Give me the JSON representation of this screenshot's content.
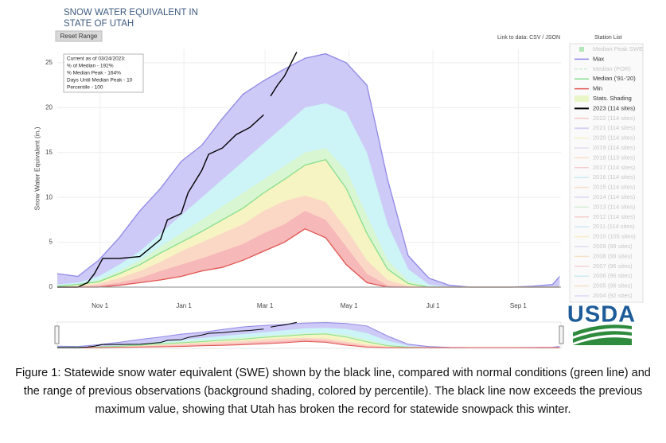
{
  "chart_data": {
    "type": "band-line",
    "title_lines": [
      "SNOW WATER EQUIVALENT IN",
      "STATE OF UTAH"
    ],
    "reset_button": "Reset Range",
    "data_link": "Link to data: CSV / JSON",
    "station_list": "Station List",
    "y_label": "Snow Water Equivalent (in.)",
    "annotation": [
      "Current as of 03/24/2023:",
      "% of Median - 192%",
      "% Median Peak - 164%",
      "Days Until Median Peak - 10",
      "Percentile - 100"
    ],
    "logo": "USDA",
    "caption": "Figure 1: Statewide snow water equivalent (SWE) shown by the black line, compared with normal conditions (green line) and the range of previous observations (background shading, colored by percentile).  The black line now exceeds the previous maximum value, showing that Utah has broken the record for statewide snowpack this winter.",
    "xlim": [
      0,
      366
    ],
    "ylim": [
      0,
      26.5
    ],
    "yticks": [
      0,
      5,
      10,
      15,
      20,
      25
    ],
    "xticks": [
      {
        "value": 31,
        "label": "Nov 1"
      },
      {
        "value": 92,
        "label": "Jan 1"
      },
      {
        "value": 151,
        "label": "Mar 1"
      },
      {
        "value": 212,
        "label": "May 1"
      },
      {
        "value": 273,
        "label": "Jul 1"
      },
      {
        "value": 335,
        "label": "Sep 1"
      }
    ],
    "grid": true,
    "x": [
      0,
      15,
      30,
      45,
      60,
      75,
      90,
      105,
      120,
      135,
      150,
      165,
      180,
      195,
      210,
      225,
      240,
      255,
      270,
      285,
      300,
      315,
      330,
      345,
      360,
      365
    ],
    "series": [
      {
        "name": "Max",
        "color": "#8f88e6",
        "values": [
          1.5,
          1.2,
          3.0,
          5.5,
          8.5,
          11,
          14,
          15.8,
          18.8,
          21.5,
          23,
          24.3,
          25.5,
          26,
          25,
          22.5,
          12,
          3.5,
          1,
          0.2,
          0,
          0,
          0,
          0.1,
          0.3,
          1.2
        ]
      },
      {
        "name": "Median ('91-'20)",
        "color": "#86df8c",
        "values": [
          0.1,
          0.3,
          0.6,
          1.5,
          2.5,
          3.8,
          5,
          6.2,
          7.5,
          8.8,
          10.5,
          12,
          13.6,
          14.2,
          11,
          6,
          2,
          0.4,
          0,
          0,
          0,
          0,
          0,
          0,
          0,
          0
        ]
      },
      {
        "name": "Min",
        "color": "#e0544f",
        "values": [
          0,
          0,
          0,
          0.2,
          0.5,
          0.8,
          1.2,
          1.8,
          2.2,
          3,
          4,
          5,
          6.5,
          5.5,
          2.5,
          0.5,
          0,
          0,
          0,
          0,
          0,
          0,
          0,
          0,
          0,
          0
        ]
      },
      {
        "name": "2023 (114 sites)",
        "color": "#000000",
        "x": [
          0,
          15,
          22,
          27,
          33,
          45,
          60,
          75,
          80,
          90,
          95,
          105,
          110,
          120,
          130,
          140,
          150,
          152,
          155,
          160,
          165,
          170,
          174
        ],
        "values": [
          0,
          0,
          0.5,
          1.5,
          3.2,
          3.2,
          3.4,
          5.3,
          7.5,
          8.2,
          10.5,
          13,
          14.8,
          15.5,
          17,
          17.8,
          19.2,
          null,
          21.3,
          22.5,
          23.5,
          25,
          26.2
        ]
      }
    ],
    "shading": {
      "name": "Stats. Shading",
      "color": "#e9f7c8",
      "max_fill": "#cdcaf7",
      "median_fill": "#f6f4c2",
      "min_fill": "#ffffff",
      "upper_bands": [
        {
          "color": "#cdf4f6",
          "values": [
            0.3,
            0.5,
            1.2,
            2.5,
            4,
            6,
            8,
            10,
            12,
            14,
            16,
            18,
            20,
            20.5,
            19.5,
            15,
            7,
            2,
            0.3,
            0,
            0,
            0,
            0,
            0,
            0,
            0
          ]
        },
        {
          "color": "#d9f6d3",
          "values": [
            0.2,
            0.3,
            0.8,
            1.8,
            3,
            4.5,
            6,
            7.5,
            9,
            10.5,
            12,
            13.5,
            15,
            15.5,
            13,
            8,
            3,
            0.7,
            0.1,
            0,
            0,
            0,
            0,
            0,
            0,
            0
          ]
        }
      ],
      "lower_bands": [
        {
          "color": "#fbd8c6",
          "values": [
            0,
            0.1,
            0.4,
            1,
            1.8,
            2.8,
            4,
            5,
            6,
            7,
            8.5,
            9.6,
            10.2,
            9.5,
            6.5,
            3,
            0.8,
            0.1,
            0,
            0,
            0,
            0,
            0,
            0,
            0,
            0
          ]
        },
        {
          "color": "#f6b8b8",
          "values": [
            0,
            0,
            0.2,
            0.5,
            1,
            1.8,
            2.5,
            3.2,
            4,
            4.8,
            6,
            7,
            8.5,
            7.5,
            4.5,
            1.5,
            0.2,
            0,
            0,
            0,
            0,
            0,
            0,
            0,
            0,
            0
          ]
        }
      ]
    },
    "legend_only": [
      {
        "name": "Median Peak SWE",
        "color": "#5fd06a"
      },
      {
        "name": "Median (POR)",
        "color": "#9fe0a5"
      },
      {
        "name": "2022 (114 sites)",
        "color": "#f08a8a"
      },
      {
        "name": "2021 (114 sites)",
        "color": "#a7a2ef"
      },
      {
        "name": "2020 (114 sites)",
        "color": "#f2e28a"
      },
      {
        "name": "2019 (114 sites)",
        "color": "#c9b7e8"
      },
      {
        "name": "2018 (113 sites)",
        "color": "#f4c08a"
      },
      {
        "name": "2017 (114 sites)",
        "color": "#f29b9b"
      },
      {
        "name": "2016 (114 sites)",
        "color": "#8fd9e8"
      },
      {
        "name": "2015 (114 sites)",
        "color": "#f4b98a"
      },
      {
        "name": "2014 (114 sites)",
        "color": "#b5b0f0"
      },
      {
        "name": "2013 (114 sites)",
        "color": "#9ee0a0"
      },
      {
        "name": "2012 (114 sites)",
        "color": "#f29b9b"
      },
      {
        "name": "2011 (114 sites)",
        "color": "#9ad3f0"
      },
      {
        "name": "2010 (105 sites)",
        "color": "#f3dc8a"
      },
      {
        "name": "2009 (99 sites)",
        "color": "#c7b4ea"
      },
      {
        "name": "2008 (99 sites)",
        "color": "#f4c38d"
      },
      {
        "name": "2007 (96 sites)",
        "color": "#f2a0a0"
      },
      {
        "name": "2006 (96 sites)",
        "color": "#93dbe6"
      },
      {
        "name": "2005 (96 sites)",
        "color": "#f5bb8e"
      },
      {
        "name": "2004 (92 sites)",
        "color": "#b6b1f1"
      }
    ]
  }
}
